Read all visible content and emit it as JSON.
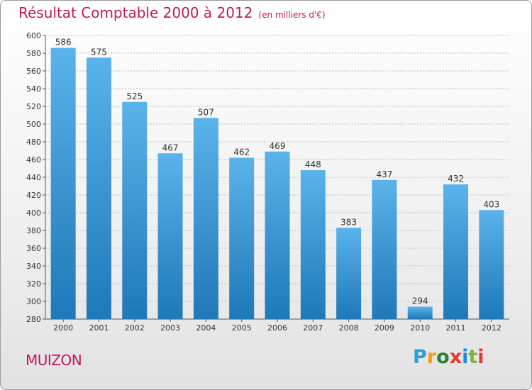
{
  "header": {
    "title": "Résultat Comptable 2000 à 2012",
    "subtitle": "(en milliers d'€)"
  },
  "footer": {
    "commune": "MUIZON"
  },
  "logo": {
    "text": "Proxiti",
    "letters": [
      "P",
      "r",
      "o",
      "x",
      "i",
      "t",
      "i"
    ],
    "colors": [
      "#2aa0d8",
      "#f39c12",
      "#2e7d32",
      "#e53935",
      "#1e88e5",
      "#7cb342",
      "#e53935"
    ]
  },
  "colors": {
    "title": "#c2185b",
    "bar_top": "#5ab3ea",
    "bar_bottom": "#1f78b8",
    "grid": "#bdbdbd"
  },
  "chart_data": {
    "type": "bar",
    "title": "Résultat Comptable 2000 à 2012",
    "subtitle": "(en milliers d'€)",
    "categories": [
      "2000",
      "2001",
      "2002",
      "2003",
      "2004",
      "2005",
      "2006",
      "2007",
      "2008",
      "2009",
      "2010",
      "2011",
      "2012"
    ],
    "values": [
      586,
      575,
      525,
      467,
      507,
      462,
      469,
      448,
      383,
      437,
      294,
      432,
      403
    ],
    "ylim": [
      280,
      600
    ],
    "yticks": [
      280,
      300,
      320,
      340,
      360,
      380,
      400,
      420,
      440,
      460,
      480,
      500,
      520,
      540,
      560,
      580,
      600
    ],
    "grid": true,
    "data_labels": true
  }
}
